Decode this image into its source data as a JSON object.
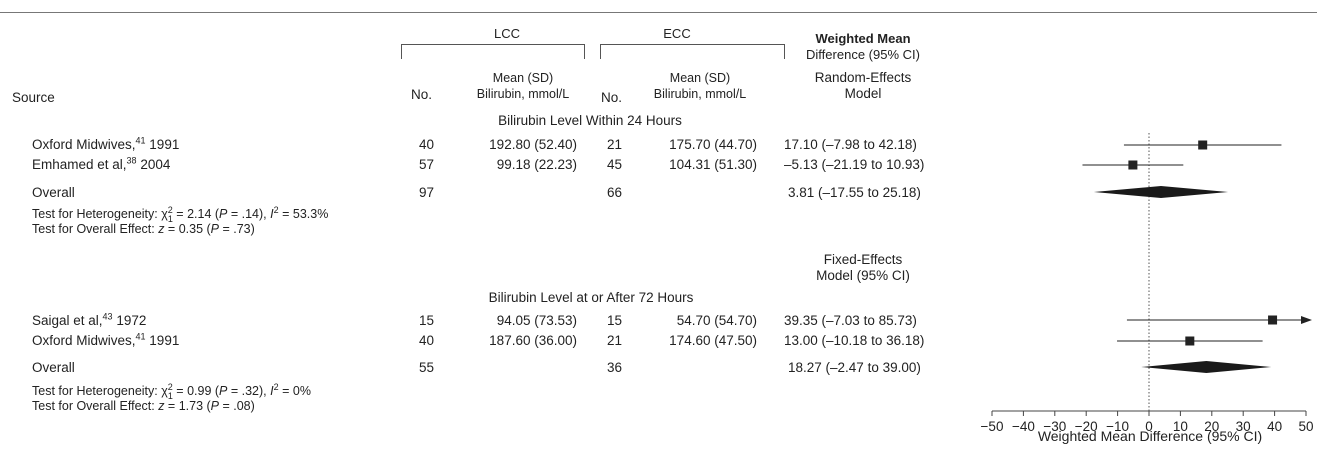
{
  "header": {
    "source": "Source",
    "lcc": "LCC",
    "ecc": "ECC",
    "no": "No.",
    "mean_sd_line1": "Mean (SD)",
    "mean_sd_line2": "Bilirubin, mmol/L",
    "wmd_line1": "Weighted Mean",
    "wmd_line2": "Difference (95% CI)",
    "model1_line1": "Random-Effects",
    "model1_line2": "Model",
    "model2_line1": "Fixed-Effects",
    "model2_line2": "Model (95% CI)"
  },
  "groups": [
    {
      "title": "Bilirubin Level Within 24 Hours",
      "studies": [
        {
          "name": "Oxford Midwives,",
          "ref": "41",
          "year": " 1991",
          "lcc_n": "40",
          "lcc_mean": "192.80 (52.40)",
          "ecc_n": "21",
          "ecc_mean": "175.70 (44.70)",
          "ci_text": "17.10 (–7.98 to 42.18)"
        },
        {
          "name": "Emhamed et al,",
          "ref": "38",
          "year": " 2004",
          "lcc_n": "57",
          "lcc_mean": "99.18 (22.23)",
          "ecc_n": "45",
          "ecc_mean": "104.31 (51.30)",
          "ci_text": "–5.13 (–21.19 to 10.93)"
        }
      ],
      "overall": {
        "label": "Overall",
        "lcc_n": "97",
        "ecc_n": "66",
        "ci_text": "3.81 (–17.55 to 25.18)"
      },
      "het": {
        "a": "Test for Heterogeneity: χ",
        "sub": "1",
        "sup": "2",
        "b": " = 2.14 (",
        "p": "P",
        "c": " = .14), ",
        "i": "I",
        "isup": "2",
        "d": " = 53.3%"
      },
      "overall_test": {
        "a": "Test for Overall Effect: ",
        "z": "z",
        "b": " = 0.35 (",
        "p": "P",
        "c": " = .73)"
      }
    },
    {
      "title": "Bilirubin Level at or After 72 Hours",
      "studies": [
        {
          "name": "Saigal et al,",
          "ref": "43",
          "year": " 1972",
          "lcc_n": "15",
          "lcc_mean": "94.05 (73.53)",
          "ecc_n": "15",
          "ecc_mean": "54.70 (54.70)",
          "ci_text": "39.35 (–7.03 to 85.73)"
        },
        {
          "name": "Oxford Midwives,",
          "ref": "41",
          "year": " 1991",
          "lcc_n": "40",
          "lcc_mean": "187.60 (36.00)",
          "ecc_n": "21",
          "ecc_mean": "174.60 (47.50)",
          "ci_text": "13.00 (–10.18 to 36.18)"
        }
      ],
      "overall": {
        "label": "Overall",
        "lcc_n": "55",
        "ecc_n": "36",
        "ci_text": "18.27 (–2.47 to 39.00)"
      },
      "het": {
        "a": "Test for Heterogeneity: χ",
        "sub": "1",
        "sup": "2",
        "b": " = 0.99 (",
        "p": "P",
        "c": " = .32), ",
        "i": "I",
        "isup": "2",
        "d": " = 0%"
      },
      "overall_test": {
        "a": "Test for Overall Effect: ",
        "z": "z",
        "b": " = 1.73 (",
        "p": "P",
        "c": " = .08)"
      }
    }
  ],
  "chart_data": {
    "type": "forest",
    "xlabel": "Weighted Mean Difference (95% CI)",
    "xlim": [
      -50,
      50
    ],
    "ticks": [
      -50,
      -40,
      -30,
      -20,
      -10,
      0,
      10,
      20,
      30,
      40,
      50
    ],
    "reference_line": 0,
    "points": [
      {
        "group": 0,
        "kind": "study",
        "est": 17.1,
        "lo": -7.98,
        "hi": 42.18
      },
      {
        "group": 0,
        "kind": "study",
        "est": -5.13,
        "lo": -21.19,
        "hi": 10.93
      },
      {
        "group": 0,
        "kind": "overall",
        "est": 3.81,
        "lo": -17.55,
        "hi": 25.18
      },
      {
        "group": 1,
        "kind": "study",
        "est": 39.35,
        "lo": -7.03,
        "hi": 85.73,
        "arrow_right": true
      },
      {
        "group": 1,
        "kind": "study",
        "est": 13.0,
        "lo": -10.18,
        "hi": 36.18
      },
      {
        "group": 1,
        "kind": "overall",
        "est": 18.27,
        "lo": -2.47,
        "hi": 39.0
      }
    ]
  }
}
